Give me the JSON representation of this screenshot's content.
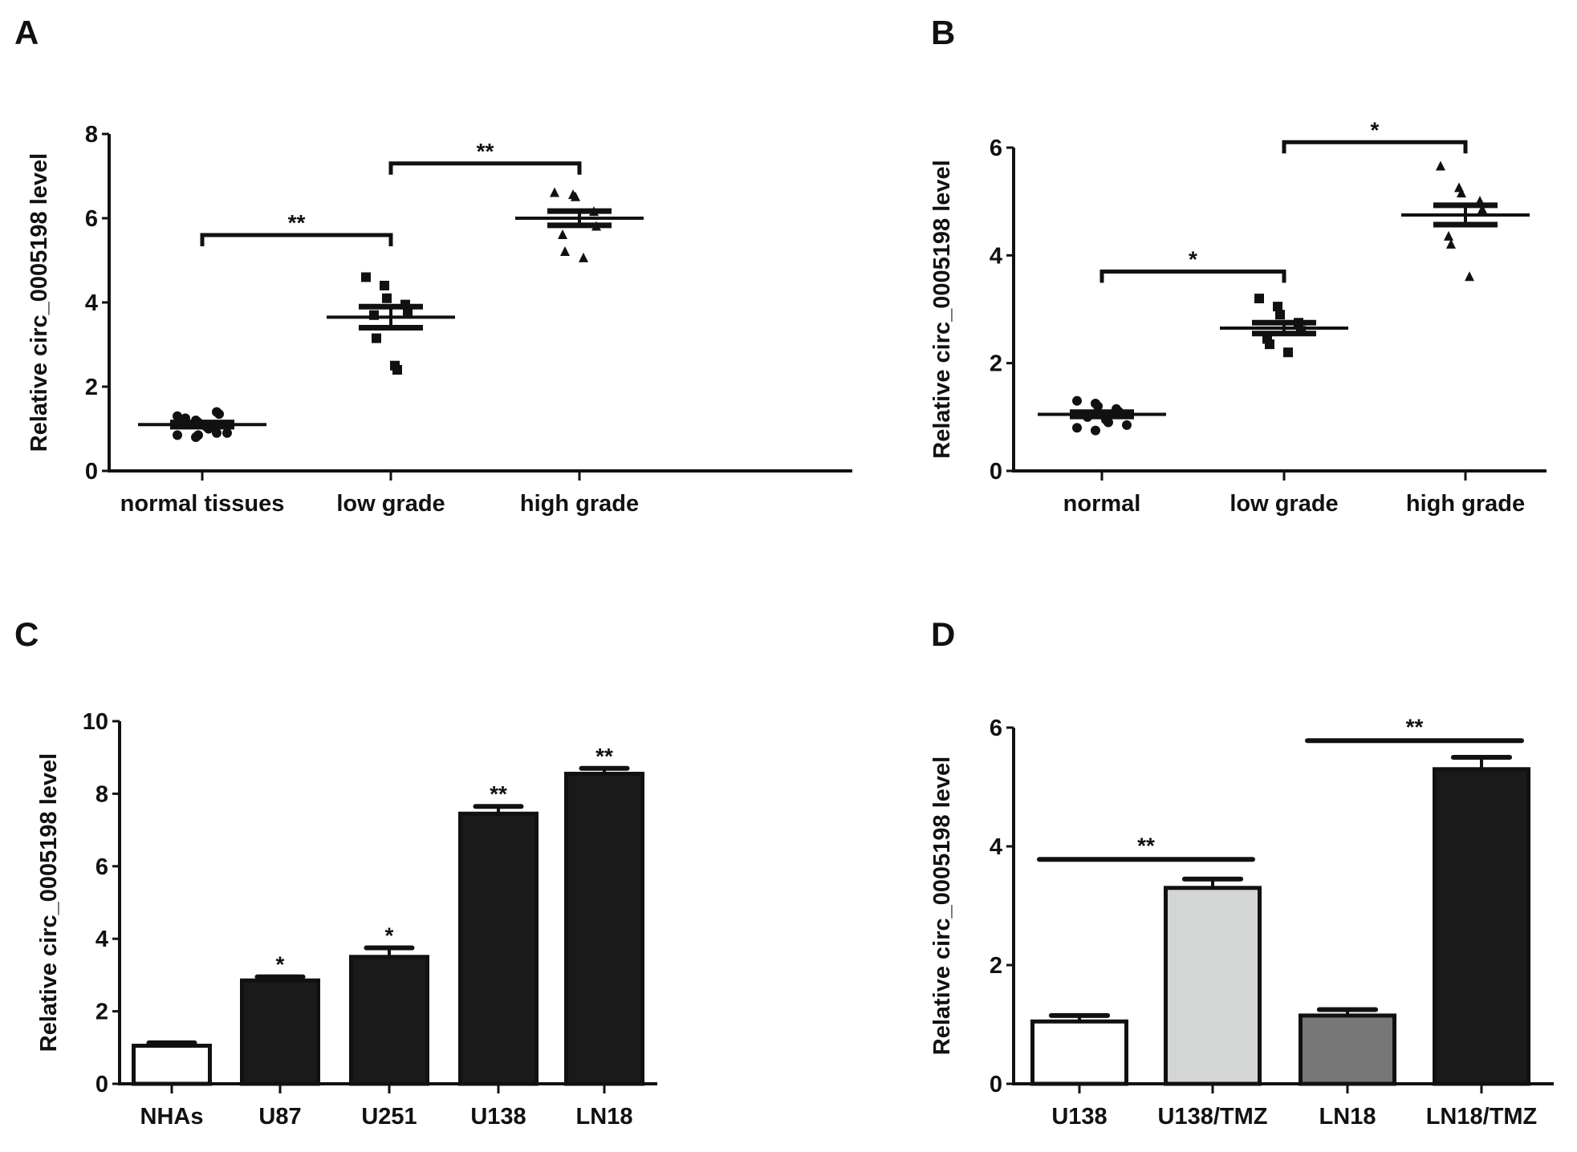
{
  "chart_data": [
    {
      "panel": "A",
      "type": "scatter",
      "ylabel": "Relative circ_0005198 level",
      "ylim": [
        0,
        8
      ],
      "yticks": [
        0,
        2,
        4,
        6,
        8
      ],
      "categories": [
        "normal tissues",
        "low grade",
        "high grade"
      ],
      "markers": [
        "circle",
        "square",
        "triangle"
      ],
      "groups": [
        {
          "mean": 1.1,
          "sem": 0.05,
          "points": [
            1.3,
            1.2,
            1.15,
            1.4,
            1.35,
            1.25,
            1.1,
            1.05,
            1.0,
            0.9,
            0.85,
            0.8,
            0.85,
            0.9
          ]
        },
        {
          "mean": 3.65,
          "sem": 0.25,
          "points": [
            4.6,
            4.4,
            4.1,
            3.95,
            3.8,
            3.7,
            3.15,
            2.5,
            2.4
          ]
        },
        {
          "mean": 6.0,
          "sem": 0.17,
          "points": [
            6.6,
            6.55,
            6.5,
            6.15,
            5.8,
            5.6,
            5.2,
            5.05
          ]
        }
      ],
      "comparisons": [
        {
          "from": 0,
          "to": 1,
          "y": 5.6,
          "label": "**"
        },
        {
          "from": 1,
          "to": 2,
          "y": 7.3,
          "label": "**"
        }
      ]
    },
    {
      "panel": "B",
      "type": "scatter",
      "ylabel": "Relative circ_0005198 level",
      "ylim": [
        0,
        6
      ],
      "yticks": [
        0,
        2,
        4,
        6
      ],
      "categories": [
        "normal",
        "low grade",
        "high grade"
      ],
      "markers": [
        "circle",
        "square",
        "triangle"
      ],
      "groups": [
        {
          "mean": 1.05,
          "sem": 0.04,
          "points": [
            1.3,
            1.25,
            1.2,
            1.15,
            1.1,
            1.05,
            1.0,
            0.95,
            0.9,
            0.85,
            0.8,
            0.75
          ]
        },
        {
          "mean": 2.65,
          "sem": 0.1,
          "points": [
            3.2,
            3.05,
            2.9,
            2.75,
            2.6,
            2.45,
            2.35,
            2.2
          ]
        },
        {
          "mean": 4.75,
          "sem": 0.18,
          "points": [
            5.65,
            5.25,
            5.15,
            5.0,
            4.85,
            4.35,
            4.2,
            3.6
          ]
        }
      ],
      "comparisons": [
        {
          "from": 0,
          "to": 1,
          "y": 3.7,
          "label": "*"
        },
        {
          "from": 1,
          "to": 2,
          "y": 6.1,
          "label": "*"
        }
      ]
    },
    {
      "panel": "C",
      "type": "bar",
      "ylabel": "Relative circ_0005198 level",
      "ylim": [
        0,
        10
      ],
      "yticks": [
        0,
        2,
        4,
        6,
        8,
        10
      ],
      "categories": [
        "NHAs",
        "U87",
        "U251",
        "U138",
        "LN18"
      ],
      "values": [
        1.05,
        2.85,
        3.5,
        7.45,
        8.55
      ],
      "errors": [
        0.08,
        0.1,
        0.25,
        0.2,
        0.15
      ],
      "colors": [
        "#ffffff",
        "#1a1a1a",
        "#1a1a1a",
        "#1a1a1a",
        "#1a1a1a"
      ],
      "annotations": [
        "",
        "*",
        "*",
        "**",
        "**"
      ]
    },
    {
      "panel": "D",
      "type": "bar",
      "ylabel": "Relative circ_0005198 level",
      "ylim": [
        0,
        6
      ],
      "yticks": [
        0,
        2,
        4,
        6
      ],
      "categories": [
        "U138",
        "U138/TMZ",
        "LN18",
        "LN18/TMZ"
      ],
      "values": [
        1.05,
        3.3,
        1.15,
        5.3
      ],
      "errors": [
        0.1,
        0.15,
        0.1,
        0.2
      ],
      "colors": [
        "#ffffff",
        "#d4d6d6",
        "#777777",
        "#1a1a1a"
      ],
      "comparisons": [
        {
          "from": 0,
          "to": 1,
          "y": 3.78,
          "label": "**"
        },
        {
          "from": 2,
          "to": 3,
          "y": 5.78,
          "label": "**"
        }
      ]
    }
  ]
}
